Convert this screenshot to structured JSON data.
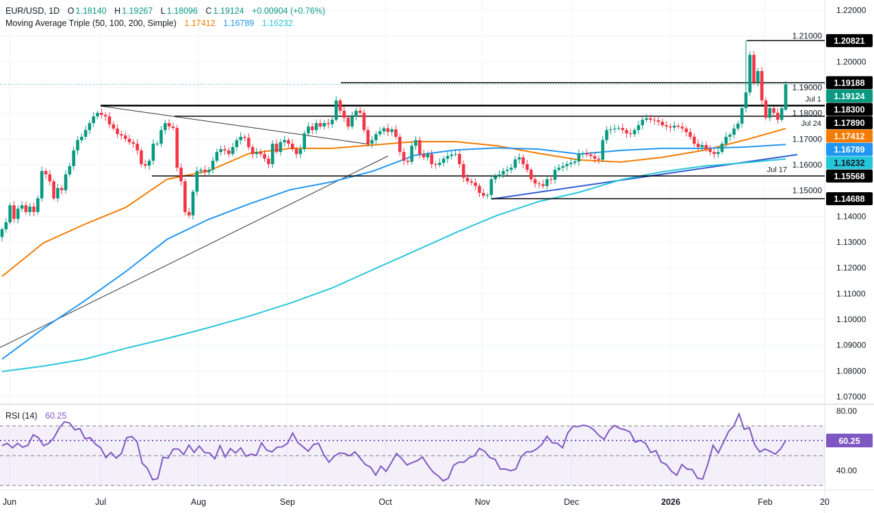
{
  "header": {
    "symbol": "EUR/USD, 1D",
    "o_label": "O",
    "o": "1.18140",
    "h_label": "H",
    "h": "1.19267",
    "l_label": "L",
    "l": "1.18096",
    "c_label": "C",
    "c": "1.19124",
    "change": "+0.00904 (+0.76%)",
    "ma_title": "Moving Average Triple (50, 100, 200, Simple)",
    "ma50": "1.17412",
    "ma100": "1.16789",
    "ma200": "1.16232"
  },
  "rsi_header": {
    "title": "RSI (14)",
    "value": "60.25"
  },
  "colors": {
    "up": "#089981",
    "down": "#f23645",
    "ma50": "#f57c00",
    "ma100": "#2196f3",
    "ma200": "#26c6da",
    "rsi": "#7e57c2",
    "trendline_blue": "#2f5bd3",
    "level": "#000000"
  },
  "time_axis": [
    "Jun",
    "Jul",
    "Aug",
    "Sep",
    "Oct",
    "Nov",
    "Dec",
    "2026",
    "Feb",
    "20"
  ],
  "chart_data": [
    {
      "type": "candlestick",
      "symbol": "EUR/USD",
      "interval": "1D",
      "ylim": [
        1.07,
        1.22
      ],
      "price_ticks": [
        "1.22000",
        "1.21000",
        "1.20000",
        "1.19000",
        "1.18000",
        "1.17000",
        "1.16000",
        "1.15000",
        "1.14000",
        "1.13000",
        "1.12000",
        "1.11000",
        "1.10000",
        "1.09000",
        "1.08000",
        "1.07000"
      ],
      "last_candle": {
        "open": 1.1814,
        "high": 1.19267,
        "low": 1.18096,
        "close": 1.19124
      },
      "closes": [
        1.135,
        1.1377,
        1.1443,
        1.139,
        1.143,
        1.1443,
        1.1417,
        1.1438,
        1.1417,
        1.147,
        1.1576,
        1.1563,
        1.1536,
        1.147,
        1.151,
        1.1502,
        1.1563,
        1.1595,
        1.1656,
        1.1696,
        1.1709,
        1.1735,
        1.1762,
        1.1788,
        1.1802,
        1.1794,
        1.1788,
        1.1757,
        1.1741,
        1.1719,
        1.1714,
        1.1701,
        1.1688,
        1.1682,
        1.1656,
        1.1603,
        1.1597,
        1.1616,
        1.1682,
        1.1682,
        1.1735,
        1.1762,
        1.1749,
        1.1743,
        1.1589,
        1.1536,
        1.1417,
        1.1404,
        1.1496,
        1.1576,
        1.1581,
        1.1571,
        1.1581,
        1.1616,
        1.165,
        1.1661,
        1.1656,
        1.1642,
        1.1669,
        1.1696,
        1.1709,
        1.1705,
        1.1669,
        1.1642,
        1.165,
        1.1642,
        1.1624,
        1.1603,
        1.1682,
        1.165,
        1.1688,
        1.1696,
        1.1682,
        1.1661,
        1.1642,
        1.1661,
        1.1722,
        1.1749,
        1.1735,
        1.1762,
        1.1749,
        1.1762,
        1.1758,
        1.1775,
        1.185,
        1.181,
        1.1783,
        1.1749,
        1.1788,
        1.181,
        1.1802,
        1.1735,
        1.1682,
        1.1696,
        1.1719,
        1.173,
        1.1742,
        1.1728,
        1.1738,
        1.1709,
        1.165,
        1.1616,
        1.1612,
        1.1674,
        1.1696,
        1.1642,
        1.1629,
        1.1642,
        1.1603,
        1.16,
        1.1608,
        1.1624,
        1.1634,
        1.164,
        1.1642,
        1.1603,
        1.155,
        1.1536,
        1.1531,
        1.1518,
        1.1491,
        1.148,
        1.1483,
        1.1544,
        1.1555,
        1.1563,
        1.1576,
        1.1581,
        1.1589,
        1.1621,
        1.1629,
        1.1603,
        1.1581,
        1.1544,
        1.1528,
        1.1525,
        1.1518,
        1.1544,
        1.1542,
        1.1581,
        1.1589,
        1.1595,
        1.1603,
        1.1608,
        1.1613,
        1.1642,
        1.1645,
        1.164,
        1.1634,
        1.1624,
        1.162,
        1.1696,
        1.1735,
        1.1738,
        1.1741,
        1.1743,
        1.1735,
        1.1722,
        1.1719,
        1.1735,
        1.1754,
        1.1775,
        1.1781,
        1.1775,
        1.1773,
        1.1767,
        1.1754,
        1.1749,
        1.1745,
        1.1752,
        1.1748,
        1.1741,
        1.1727,
        1.1709,
        1.1682,
        1.1669,
        1.1677,
        1.1661,
        1.165,
        1.1642,
        1.165,
        1.1682,
        1.1709,
        1.1717,
        1.1741,
        1.176,
        1.182,
        1.1881,
        1.2027,
        1.1921,
        1.1964,
        1.185,
        1.1783,
        1.182,
        1.1802,
        1.1775,
        1.182,
        1.19124
      ],
      "moving_averages": [
        {
          "name": "MA 50",
          "period": 50,
          "last": 1.17412,
          "values": [
            1.1167,
            1.1297,
            1.1369,
            1.1435,
            1.1544,
            1.1576,
            1.1645,
            1.1664,
            1.1664,
            1.1677,
            1.169,
            1.169,
            1.1674,
            1.1645,
            1.1619,
            1.1611,
            1.1629,
            1.1656,
            1.1696,
            1.1741
          ]
        },
        {
          "name": "MA 100",
          "period": 100,
          "last": 1.16789,
          "values": [
            1.0846,
            1.0965,
            1.1072,
            1.1186,
            1.1311,
            1.1388,
            1.1449,
            1.1504,
            1.1534,
            1.1576,
            1.1637,
            1.1658,
            1.1666,
            1.1661,
            1.1642,
            1.1656,
            1.1664,
            1.1664,
            1.1669,
            1.1679
          ]
        },
        {
          "name": "MA 200",
          "period": 200,
          "last": 1.16232,
          "values": [
            1.0798,
            1.0819,
            1.0846,
            1.0888,
            1.0926,
            1.0968,
            1.1013,
            1.1064,
            1.1122,
            1.1194,
            1.1265,
            1.1337,
            1.1404,
            1.1457,
            1.1494,
            1.1542,
            1.1573,
            1.1595,
            1.1608,
            1.1623
          ]
        }
      ],
      "levels": [
        {
          "price": 1.20821,
          "label": "1.20821"
        },
        {
          "price": 1.19188,
          "label": "1.19188"
        },
        {
          "price": 1.183,
          "label": "1.18300",
          "note": "Jul 1"
        },
        {
          "price": 1.1789,
          "label": "1.17890",
          "note": "Jul 24"
        },
        {
          "price": 1.15568,
          "label": "1.15568",
          "note": "Jul 17"
        },
        {
          "price": 1.14688,
          "label": "1.14688"
        }
      ],
      "last_price_label": "1.19124",
      "ma_labels": [
        "1.17412",
        "1.16789",
        "1.16232"
      ]
    },
    {
      "type": "line",
      "title": "RSI (14)",
      "ylim": [
        25,
        85
      ],
      "ticks": [
        "80.00",
        "40.00"
      ],
      "bands": [
        70,
        50,
        30
      ],
      "current": 60.25,
      "current_label": "60.25",
      "values": [
        56.8,
        58.3,
        55.3,
        58.3,
        55.7,
        57.1,
        64.1,
        62.1,
        56.8,
        58.3,
        62.1,
        68.5,
        72.8,
        72.0,
        67.4,
        68.2,
        61.4,
        62.1,
        57.8,
        55.3,
        48.7,
        52.2,
        48.4,
        51.5,
        62.1,
        62.9,
        59.4,
        45.0,
        41.5,
        33.9,
        34.6,
        48.9,
        48.4,
        54.5,
        54.5,
        50.7,
        57.2,
        52.2,
        56.5,
        52.2,
        51.8,
        47.9,
        56.8,
        49.1,
        54.8,
        51.8,
        55.3,
        49.6,
        51.1,
        50.2,
        58.6,
        53.7,
        52.6,
        55.7,
        56.0,
        58.3,
        65.2,
        58.8,
        56.0,
        53.0,
        57.5,
        58.3,
        50.7,
        45.6,
        49.6,
        51.8,
        51.5,
        49.9,
        52.6,
        48.4,
        44.1,
        42.3,
        36.9,
        43.0,
        39.5,
        45.3,
        51.5,
        48.1,
        43.8,
        45.3,
        46.6,
        49.1,
        43.8,
        39.2,
        36.5,
        33.1,
        34.9,
        43.5,
        45.7,
        45.7,
        48.7,
        49.9,
        54.9,
        52.9,
        48.7,
        47.6,
        41.0,
        41.0,
        39.9,
        41.0,
        49.1,
        52.6,
        52.6,
        54.5,
        57.5,
        63.1,
        58.7,
        58.3,
        55.3,
        65.2,
        69.8,
        69.5,
        70.5,
        69.8,
        67.5,
        63.7,
        61.0,
        67.1,
        70.3,
        68.3,
        67.5,
        66.0,
        59.1,
        60.3,
        58.3,
        52.2,
        53.4,
        45.7,
        44.1,
        39.5,
        36.9,
        44.1,
        41.0,
        40.7,
        34.9,
        34.3,
        44.5,
        57.0,
        51.8,
        59.0,
        66.3,
        70.0,
        78.1,
        67.8,
        68.8,
        57.5,
        52.5,
        54.5,
        52.9,
        51.1,
        54.5,
        60.25
      ]
    }
  ]
}
